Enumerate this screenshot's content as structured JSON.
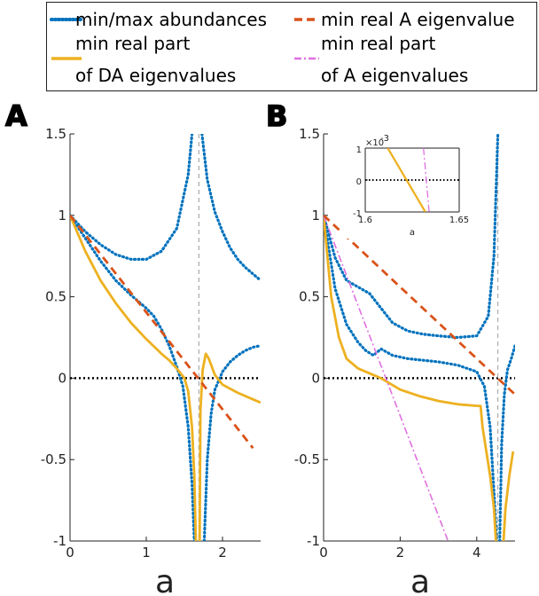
{
  "colors": {
    "minmax": "#0072BD",
    "da": "#EDB120",
    "a_eig": "#D95319",
    "a_part": "#E070E0",
    "zero": "#000000",
    "vline": "#AAAAAA"
  },
  "legend": {
    "minmax": "min/max abundances",
    "da_line1": "min real part",
    "da_line2": "of DA eigenvalues",
    "a_eig": "min real A eigenvalue",
    "a_part_line1": "min real part",
    "a_part_line2": "of A eigenvalues"
  },
  "chart_data": [
    {
      "panel": "A",
      "type": "line",
      "xlabel": "a",
      "xlim": [
        0,
        2.5
      ],
      "ylim": [
        -1,
        1.5
      ],
      "xticks": [
        "0",
        "1",
        "2"
      ],
      "yticks": [
        "-1",
        "-0.5",
        "0",
        "0.5",
        "1",
        "1.5"
      ],
      "vline_x": 1.69,
      "series": [
        {
          "name": "min/max abundances",
          "key": "minmax",
          "style": "dotted",
          "x": [
            0,
            0.2,
            0.4,
            0.6,
            0.8,
            1.0,
            1.2,
            1.4,
            1.55,
            1.6
          ],
          "y": [
            1.0,
            0.9,
            0.82,
            0.76,
            0.73,
            0.73,
            0.78,
            0.92,
            1.25,
            1.5
          ]
        },
        {
          "name": "min/max abundances",
          "key": "minmax",
          "style": "dotted",
          "x": [
            1.73,
            1.8,
            1.9,
            2.0,
            2.1,
            2.2,
            2.3,
            2.4,
            2.5
          ],
          "y": [
            1.5,
            1.22,
            1.02,
            0.9,
            0.8,
            0.73,
            0.68,
            0.64,
            0.6
          ]
        },
        {
          "name": "min/max abundances",
          "key": "minmax",
          "style": "dotted",
          "x": [
            0,
            0.2,
            0.4,
            0.6,
            0.8,
            1.0,
            1.1,
            1.2,
            1.3,
            1.4,
            1.48,
            1.55,
            1.6,
            1.63
          ],
          "y": [
            1.0,
            0.86,
            0.72,
            0.6,
            0.51,
            0.43,
            0.38,
            0.3,
            0.2,
            0.07,
            -0.05,
            -0.3,
            -0.65,
            -1.0
          ]
        },
        {
          "name": "min/max abundances",
          "key": "minmax",
          "style": "dotted",
          "x": [
            1.76,
            1.8,
            1.85,
            1.9,
            2.0,
            2.1,
            2.2,
            2.3,
            2.4,
            2.5
          ],
          "y": [
            -1.0,
            -0.5,
            -0.22,
            -0.07,
            0.04,
            0.1,
            0.14,
            0.17,
            0.19,
            0.2
          ]
        },
        {
          "name": "min real part of DA eigenvalues",
          "key": "da",
          "style": "solid",
          "x": [
            0,
            0.2,
            0.4,
            0.6,
            0.8,
            1.0,
            1.2,
            1.3,
            1.4,
            1.5,
            1.55,
            1.6,
            1.63,
            1.65
          ],
          "y": [
            1.0,
            0.78,
            0.6,
            0.46,
            0.34,
            0.24,
            0.15,
            0.11,
            0.06,
            0.0,
            -0.08,
            -0.3,
            -0.6,
            -1.0
          ]
        },
        {
          "name": "min real part of DA eigenvalues",
          "key": "da",
          "style": "solid",
          "x": [
            1.7,
            1.71,
            1.74,
            1.78,
            1.82,
            1.9,
            2.0,
            2.2,
            2.4,
            2.5
          ],
          "y": [
            -1.0,
            -0.2,
            0.05,
            0.15,
            0.12,
            0.02,
            -0.04,
            -0.09,
            -0.13,
            -0.15
          ]
        },
        {
          "name": "min real A eigenvalue",
          "key": "a_eig",
          "style": "dashed",
          "x": [
            0,
            2.4
          ],
          "y": [
            1.0,
            -0.43
          ]
        }
      ]
    },
    {
      "panel": "B",
      "type": "line",
      "xlabel": "a",
      "xlim": [
        0,
        5
      ],
      "ylim": [
        -1,
        1.5
      ],
      "xticks": [
        "0",
        "2",
        "4"
      ],
      "yticks": [
        "-1",
        "-0.5",
        "0",
        "0.5",
        "1",
        "1.5"
      ],
      "vline_x": 4.55,
      "series": [
        {
          "name": "min real part of A eigenvalues",
          "key": "a_part",
          "style": "dashdot",
          "x": [
            0,
            3.25
          ],
          "y": [
            1.0,
            -1.0
          ]
        },
        {
          "name": "min/max abundances",
          "key": "minmax",
          "style": "dotted",
          "x": [
            0,
            0.3,
            0.6,
            0.9,
            1.2,
            1.5,
            1.8,
            2.2,
            2.6,
            3.0,
            3.5,
            4.0,
            4.3,
            4.45,
            4.55
          ],
          "y": [
            1.0,
            0.74,
            0.6,
            0.56,
            0.52,
            0.43,
            0.34,
            0.29,
            0.27,
            0.26,
            0.25,
            0.26,
            0.38,
            0.75,
            1.5
          ]
        },
        {
          "name": "min/max abundances",
          "key": "minmax",
          "style": "dotted",
          "x": [
            0,
            0.3,
            0.6,
            0.9,
            1.1,
            1.3,
            1.5,
            1.8,
            2.2,
            2.6,
            3.0,
            3.5,
            4.0,
            4.2,
            4.35,
            4.45,
            4.52
          ],
          "y": [
            1.0,
            0.55,
            0.33,
            0.22,
            0.17,
            0.14,
            0.18,
            0.14,
            0.12,
            0.11,
            0.1,
            0.08,
            0.04,
            -0.05,
            -0.3,
            -0.7,
            -1.0
          ]
        },
        {
          "name": "min/max abundances",
          "key": "minmax",
          "style": "dotted",
          "x": [
            4.6,
            4.65,
            4.72,
            4.8,
            4.9,
            5.0
          ],
          "y": [
            -1.0,
            -0.4,
            -0.1,
            0.05,
            0.12,
            0.2
          ]
        },
        {
          "name": "min real part of DA eigenvalues",
          "key": "da",
          "style": "solid",
          "x": [
            0,
            0.2,
            0.4,
            0.6,
            0.9,
            1.2,
            1.5,
            2.0,
            2.5,
            3.0,
            3.5,
            4.0,
            4.1,
            4.15,
            4.25,
            4.35,
            4.45,
            4.5
          ],
          "y": [
            1.0,
            0.5,
            0.25,
            0.12,
            0.06,
            0.03,
            0.0,
            -0.07,
            -0.11,
            -0.14,
            -0.16,
            -0.17,
            -0.17,
            -0.3,
            -0.45,
            -0.6,
            -0.8,
            -1.0
          ]
        },
        {
          "name": "min real part of DA eigenvalues",
          "key": "da",
          "style": "solid",
          "x": [
            4.7,
            4.75,
            4.85,
            4.95
          ],
          "y": [
            -1.0,
            -0.8,
            -0.6,
            -0.45
          ]
        },
        {
          "name": "min real A eigenvalue",
          "key": "a_eig",
          "style": "dashed",
          "x": [
            0,
            5.0
          ],
          "y": [
            1.0,
            -0.1
          ]
        }
      ],
      "inset": {
        "type": "line",
        "xlabel": "a",
        "xlim": [
          1.6,
          1.65
        ],
        "ylim": [
          -0.001,
          0.001
        ],
        "xticks": [
          "1.6",
          "1.65"
        ],
        "yticks": [
          "1",
          "0",
          "-1"
        ],
        "exponent_label": "×10",
        "exponent_power": "-3",
        "series": [
          {
            "name": "min real part of DA eigenvalues",
            "key": "da",
            "style": "solid",
            "x": [
              1.612,
              1.632
            ],
            "y": [
              0.001,
              -0.001
            ]
          },
          {
            "name": "min real part of A eigenvalues",
            "key": "a_part",
            "style": "dashdot",
            "x": [
              1.631,
              1.634
            ],
            "y": [
              0.001,
              -0.001
            ]
          }
        ]
      }
    }
  ]
}
